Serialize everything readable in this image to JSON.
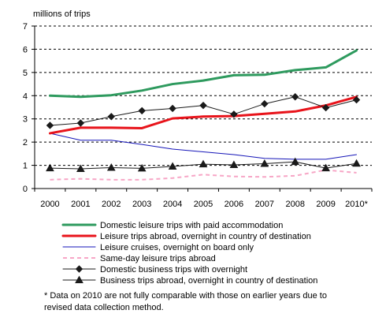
{
  "chart_data": {
    "type": "line",
    "ylabel": "millions of trips",
    "xlabel": "",
    "ylim": [
      0,
      7
    ],
    "yticks": [
      "0",
      "1",
      "2",
      "3",
      "4",
      "5",
      "6",
      "7"
    ],
    "categories": [
      "2000",
      "2001",
      "2002",
      "2003",
      "2004",
      "2005",
      "2006",
      "2007",
      "2008",
      "2009",
      "2010*"
    ],
    "grid": "horizontal dashed",
    "legend_position": "below",
    "series": [
      {
        "name": "Domestic leisure trips with paid accommodation",
        "color": "#2e9a5e",
        "style": "thick",
        "marker": "none",
        "values": [
          4.0,
          3.95,
          4.02,
          4.22,
          4.5,
          4.65,
          4.88,
          4.9,
          5.1,
          5.22,
          5.95
        ]
      },
      {
        "name": "Leisure trips abroad, overnight in country of destination",
        "color": "#e8141b",
        "style": "thick",
        "marker": "none",
        "values": [
          2.38,
          2.62,
          2.62,
          2.6,
          3.02,
          3.1,
          3.12,
          3.22,
          3.32,
          3.58,
          3.95
        ]
      },
      {
        "name": "Leisure cruises, overnight on board only",
        "color": "#1616b8",
        "style": "thin",
        "marker": "none",
        "values": [
          2.38,
          2.08,
          2.08,
          1.9,
          1.7,
          1.58,
          1.46,
          1.3,
          1.26,
          1.26,
          1.46
        ]
      },
      {
        "name": "Same-day leisure trips abroad",
        "color": "#f7a6c6",
        "style": "dashed",
        "marker": "none",
        "values": [
          0.38,
          0.42,
          0.38,
          0.38,
          0.45,
          0.6,
          0.52,
          0.5,
          0.55,
          0.8,
          0.68
        ]
      },
      {
        "name": "Domestic business trips with overnight",
        "color": "#1a1a1a",
        "style": "thin",
        "marker": "diamond",
        "values": [
          2.72,
          2.82,
          3.1,
          3.35,
          3.45,
          3.58,
          3.2,
          3.65,
          3.95,
          3.48,
          3.82
        ]
      },
      {
        "name": "Business trips abroad, overnight in country of destination",
        "color": "#1a1a1a",
        "style": "thin",
        "marker": "triangle",
        "values": [
          0.88,
          0.85,
          0.9,
          0.87,
          0.95,
          1.05,
          1.02,
          1.07,
          1.15,
          0.88,
          1.08
        ]
      }
    ],
    "footnote_line1": "* Data on 2010 are not fully comparable with those on earlier years due to",
    "footnote_line2": "revised data collection method."
  }
}
